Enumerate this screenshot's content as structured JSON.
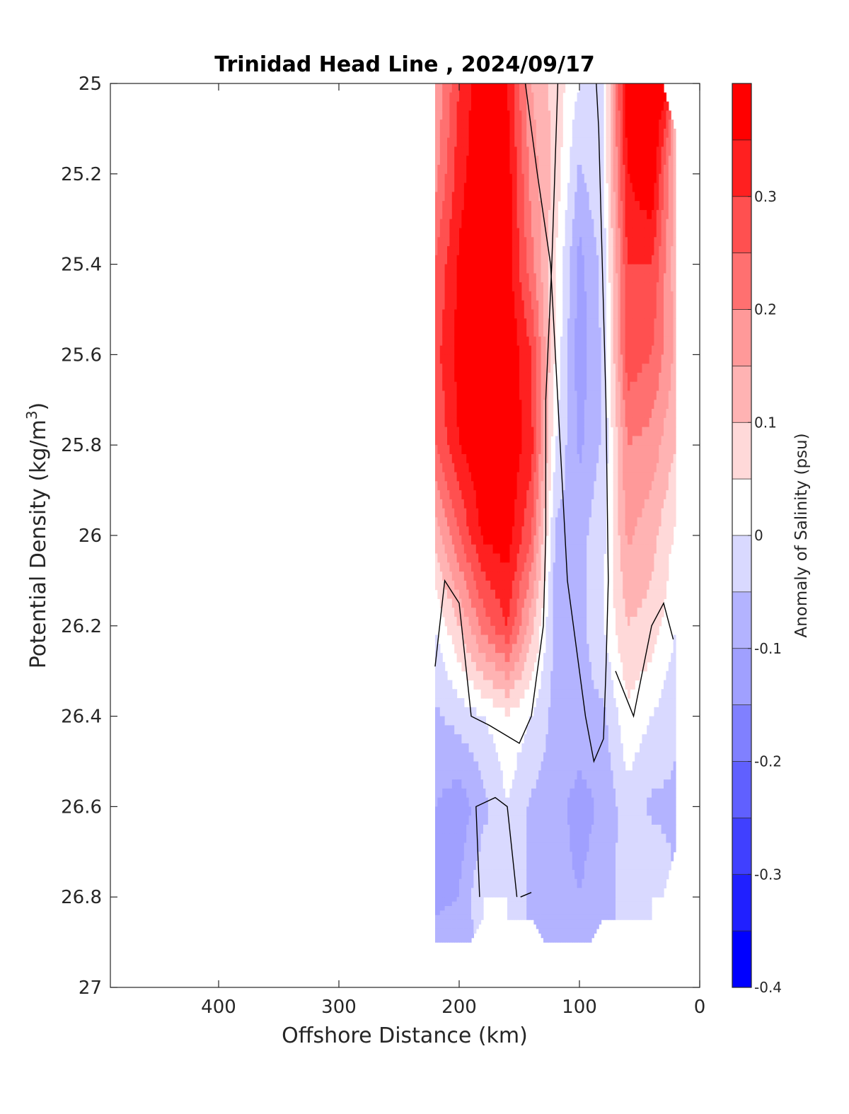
{
  "chart_data": {
    "type": "contourf",
    "title": "Trinidad Head Line , 2024/09/17",
    "xlabel": "Offshore Distance (km)",
    "ylabel_main": "Potential Density (kg/m",
    "ylabel_sup": "3",
    "ylabel_close": ")",
    "colorbar_label": "Anomaly of Salinity (psu)",
    "x_reversed": true,
    "xlim": [
      0,
      490
    ],
    "ylim": [
      25,
      27
    ],
    "y_reversed": true,
    "xticks": [
      400,
      300,
      200,
      100,
      0
    ],
    "xtick_labels": [
      "400",
      "300",
      "200",
      "100",
      "0"
    ],
    "yticks": [
      25,
      25.2,
      25.4,
      25.6,
      25.8,
      26,
      26.2,
      26.4,
      26.6,
      26.8,
      27
    ],
    "ytick_labels": [
      "25",
      "25.2",
      "25.4",
      "25.6",
      "25.8",
      "26",
      "26.2",
      "26.4",
      "26.6",
      "26.8",
      "27"
    ],
    "colorbar_range": [
      -0.4,
      0.4
    ],
    "colorbar_levels": [
      -0.4,
      -0.35,
      -0.3,
      -0.25,
      -0.2,
      -0.15,
      -0.1,
      -0.05,
      0,
      0.05,
      0.1,
      0.15,
      0.2,
      0.25,
      0.3,
      0.35,
      0.4
    ],
    "colorbar_colors": [
      "#0000ff",
      "#2020ff",
      "#4040ff",
      "#6060ff",
      "#8080ff",
      "#a0a0ff",
      "#b3b3ff",
      "#d9d9ff",
      "#ffffff",
      "#ffd9d9",
      "#ffb3b3",
      "#ff9999",
      "#ff7070",
      "#ff5050",
      "#ff2020",
      "#ff0000"
    ],
    "colorbar_ticks": [
      0.3,
      0.2,
      0.1,
      0,
      -0.1,
      -0.2,
      -0.3,
      -0.4
    ],
    "colorbar_tick_labels": [
      "0.3",
      "0.2",
      "0.1",
      "0",
      "-0.1",
      "-0.2",
      "-0.3",
      "-0.4"
    ],
    "grid": false,
    "stations_x": [
      220,
      200,
      180,
      160,
      140,
      120,
      100,
      80,
      60,
      40,
      20
    ],
    "density_levels": [
      25.0,
      25.2,
      25.4,
      25.6,
      25.8,
      26.0,
      26.2,
      26.4,
      26.6,
      26.8,
      26.9
    ],
    "anomaly": [
      [
        0.15,
        0.3,
        0.4,
        0.35,
        0.15,
        0.08,
        0.0,
        0.0,
        0.4,
        0.4,
        null
      ],
      [
        0.18,
        0.33,
        0.4,
        0.38,
        0.18,
        0.08,
        -0.06,
        0.0,
        0.35,
        0.4,
        0.12
      ],
      [
        0.25,
        0.36,
        0.4,
        0.38,
        0.22,
        0.05,
        -0.12,
        -0.03,
        0.3,
        0.3,
        0.12
      ],
      [
        0.28,
        0.37,
        0.4,
        0.4,
        0.3,
        0.04,
        -0.13,
        -0.04,
        0.28,
        0.25,
        0.14
      ],
      [
        0.25,
        0.35,
        0.4,
        0.4,
        0.32,
        0.0,
        -0.11,
        -0.04,
        0.2,
        0.18,
        0.1
      ],
      [
        0.12,
        0.25,
        0.36,
        0.38,
        0.25,
        -0.06,
        -0.07,
        -0.01,
        0.16,
        0.12,
        0.04
      ],
      [
        0.0,
        0.1,
        0.22,
        0.3,
        0.12,
        -0.07,
        -0.07,
        0.0,
        0.1,
        0.08,
        0.0
      ],
      [
        -0.06,
        -0.03,
        0.0,
        0.04,
        0.0,
        -0.07,
        -0.07,
        -0.06,
        0.04,
        0.0,
        -0.04
      ],
      [
        -0.1,
        -0.13,
        -0.07,
        0.0,
        -0.06,
        -0.08,
        -0.12,
        -0.09,
        -0.02,
        -0.06,
        -0.06
      ],
      [
        -0.12,
        -0.1,
        0.0,
        0.0,
        -0.06,
        -0.08,
        -0.1,
        -0.07,
        -0.03,
        0.0,
        null
      ],
      [
        -0.07,
        -0.06,
        null,
        null,
        null,
        -0.07,
        -0.07,
        null,
        null,
        null,
        null
      ]
    ],
    "zero_contour_lines": [
      [
        [
          86,
          25.0
        ],
        [
          84,
          25.1
        ],
        [
          82,
          25.3
        ],
        [
          78,
          25.7
        ],
        [
          76,
          26.1
        ],
        [
          78,
          26.3
        ],
        [
          80,
          26.45
        ],
        [
          88,
          26.5
        ],
        [
          95,
          26.4
        ],
        [
          110,
          26.1
        ],
        [
          118,
          25.7
        ],
        [
          124,
          25.4
        ],
        [
          135,
          25.2
        ],
        [
          145,
          25.0
        ]
      ],
      [
        [
          220,
          26.29
        ],
        [
          212,
          26.1
        ],
        [
          200,
          26.15
        ],
        [
          190,
          26.4
        ],
        [
          175,
          26.42
        ],
        [
          150,
          26.46
        ],
        [
          140,
          26.4
        ],
        [
          130,
          26.2
        ],
        [
          128,
          26.0
        ],
        [
          128,
          25.7
        ],
        [
          123,
          25.4
        ],
        [
          118,
          25.0
        ]
      ],
      [
        [
          183,
          26.8
        ],
        [
          186,
          26.6
        ],
        [
          170,
          26.58
        ],
        [
          160,
          26.6
        ],
        [
          152,
          26.8
        ]
      ],
      [
        [
          149,
          26.8
        ],
        [
          140,
          26.79
        ]
      ],
      [
        [
          70,
          26.3
        ],
        [
          55,
          26.4
        ],
        [
          40,
          26.2
        ],
        [
          30,
          26.15
        ],
        [
          22,
          26.23
        ]
      ]
    ]
  }
}
